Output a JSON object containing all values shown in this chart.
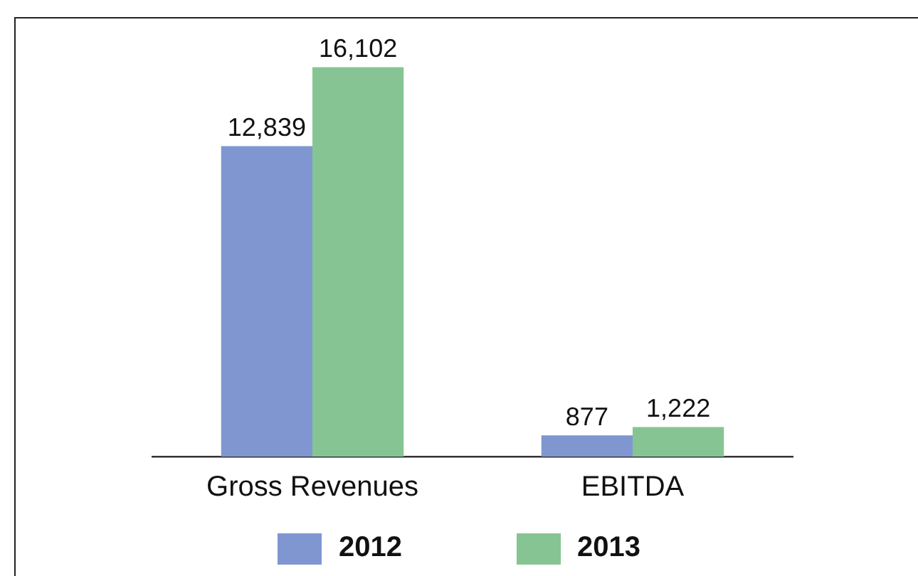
{
  "chart_data": {
    "type": "bar",
    "categories": [
      "Gross Revenues",
      "EBITDA"
    ],
    "series": [
      {
        "name": "2012",
        "color": "#7f96d0",
        "values": [
          12839,
          877
        ],
        "value_labels": [
          "12,839",
          "877"
        ]
      },
      {
        "name": "2013",
        "color": "#86c593",
        "values": [
          16102,
          1222
        ],
        "value_labels": [
          "16,102",
          "1,222"
        ]
      }
    ],
    "legend": "bottom",
    "grid": false,
    "tick_labels": "x"
  }
}
